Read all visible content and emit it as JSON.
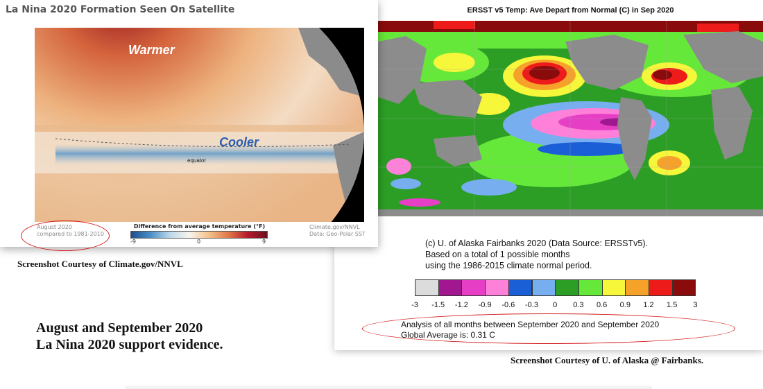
{
  "left_panel": {
    "title": "La Nina 2020 Formation Seen On Satellite",
    "label_warmer": "Warmer",
    "label_cooler": "Cooler",
    "label_equator": "equator",
    "date_line1": "August 2020",
    "date_line2": "compared to 1981-2010",
    "colorbar_title": "Difference from average temperature (°F)",
    "colorbar_ticks": [
      "-9",
      "0",
      "9"
    ],
    "source_line1": "Climate.gov/NNVL",
    "source_line2": "Data: Geo-Polar SST"
  },
  "left_caption": "Screenshot Courtesy of Climate.gov/NNVL",
  "summary": {
    "line1": "August and September 2020",
    "line2": "La Nina 2020 support evidence."
  },
  "right_panel": {
    "title": "ERSST v5 Temp:  Ave Depart from Normal (C) in Sep 2020",
    "credit_line1": "(c) U. of Alaska Fairbanks 2020 (Data Source: ERSSTv5).",
    "credit_line2": "Based on a total of 1 possible months",
    "credit_line3": "using the 1986-2015 climate normal period.",
    "colorbar_colors": [
      "#dcdcdc",
      "#a0178f",
      "#e63fc6",
      "#ff80d8",
      "#1b5fd6",
      "#76aef0",
      "#2c9e25",
      "#66e83a",
      "#f6f63a",
      "#f5a12a",
      "#ee1b1b",
      "#8a0b0b"
    ],
    "colorbar_ticks": [
      "-3",
      "-1.5",
      "-1.2",
      "-0.9",
      "-0.6",
      "-0.3",
      "0",
      "0.3",
      "0.6",
      "0.9",
      "1.2",
      "1.5",
      "3"
    ],
    "analysis_line1": "Analysis of all months between September 2020 and September 2020",
    "analysis_line2": "Global Average is:  0.31 C"
  },
  "right_caption": "Screenshot Courtesy of U. of Alaska @ Fairbanks."
}
